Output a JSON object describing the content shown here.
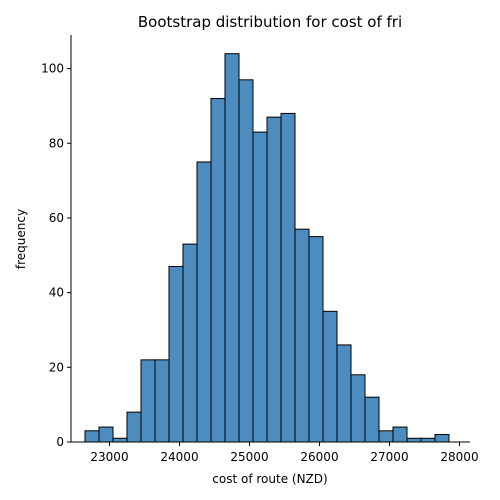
{
  "chart_data": {
    "type": "bar",
    "title": "Bootstrap distribution for cost of fri",
    "xlabel": "cost of route (NZD)",
    "ylabel": "frequency",
    "bar_color": "#4c8cbf",
    "edge_color": "#000000",
    "grid": false,
    "xlim": [
      22450,
      28150
    ],
    "ylim": [
      0,
      109
    ],
    "xticks": [
      23000,
      24000,
      25000,
      26000,
      27000,
      28000
    ],
    "yticks": [
      0,
      20,
      40,
      60,
      80,
      100
    ],
    "bins": [
      {
        "x0": 22650,
        "x1": 22850,
        "count": 3
      },
      {
        "x0": 22850,
        "x1": 23050,
        "count": 4
      },
      {
        "x0": 23050,
        "x1": 23250,
        "count": 1
      },
      {
        "x0": 23250,
        "x1": 23450,
        "count": 8
      },
      {
        "x0": 23450,
        "x1": 23650,
        "count": 22
      },
      {
        "x0": 23650,
        "x1": 23850,
        "count": 22
      },
      {
        "x0": 23850,
        "x1": 24050,
        "count": 47
      },
      {
        "x0": 24050,
        "x1": 24250,
        "count": 53
      },
      {
        "x0": 24250,
        "x1": 24450,
        "count": 75
      },
      {
        "x0": 24450,
        "x1": 24650,
        "count": 92
      },
      {
        "x0": 24650,
        "x1": 24850,
        "count": 104
      },
      {
        "x0": 24850,
        "x1": 25050,
        "count": 97
      },
      {
        "x0": 25050,
        "x1": 25250,
        "count": 83
      },
      {
        "x0": 25250,
        "x1": 25450,
        "count": 87
      },
      {
        "x0": 25450,
        "x1": 25650,
        "count": 88
      },
      {
        "x0": 25650,
        "x1": 25850,
        "count": 57
      },
      {
        "x0": 25850,
        "x1": 26050,
        "count": 55
      },
      {
        "x0": 26050,
        "x1": 26250,
        "count": 35
      },
      {
        "x0": 26250,
        "x1": 26450,
        "count": 26
      },
      {
        "x0": 26450,
        "x1": 26650,
        "count": 18
      },
      {
        "x0": 26650,
        "x1": 26850,
        "count": 12
      },
      {
        "x0": 26850,
        "x1": 27050,
        "count": 3
      },
      {
        "x0": 27050,
        "x1": 27250,
        "count": 4
      },
      {
        "x0": 27250,
        "x1": 27450,
        "count": 1
      },
      {
        "x0": 27450,
        "x1": 27650,
        "count": 1
      },
      {
        "x0": 27650,
        "x1": 27850,
        "count": 2
      }
    ]
  }
}
